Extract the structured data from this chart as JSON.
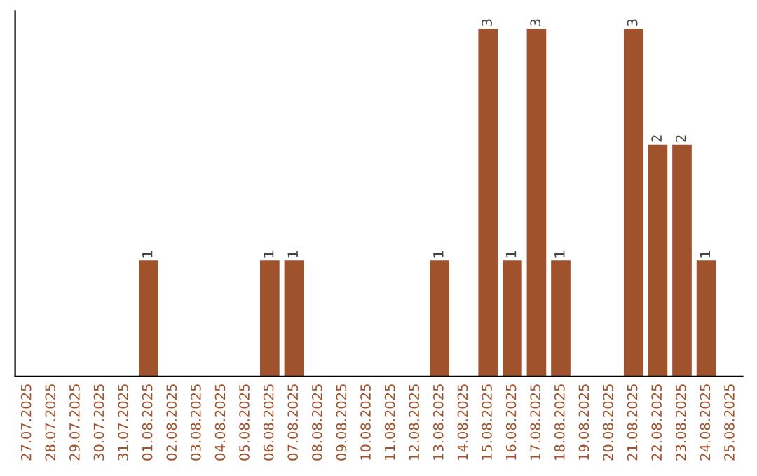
{
  "chart_data": {
    "type": "bar",
    "categories": [
      "27.07.2025",
      "28.07.2025",
      "29.07.2025",
      "30.07.2025",
      "31.07.2025",
      "01.08.2025",
      "02.08.2025",
      "03.08.2025",
      "04.08.2025",
      "05.08.2025",
      "06.08.2025",
      "07.08.2025",
      "08.08.2025",
      "09.08.2025",
      "10.08.2025",
      "11.08.2025",
      "12.08.2025",
      "13.08.2025",
      "14.08.2025",
      "15.08.2025",
      "16.08.2025",
      "17.08.2025",
      "18.08.2025",
      "19.08.2025",
      "20.08.2025",
      "21.08.2025",
      "22.08.2025",
      "23.08.2025",
      "24.08.2025",
      "25.08.2025"
    ],
    "values": [
      0,
      0,
      0,
      0,
      0,
      1,
      0,
      0,
      0,
      0,
      1,
      1,
      0,
      0,
      0,
      0,
      0,
      1,
      0,
      3,
      1,
      3,
      1,
      0,
      0,
      3,
      2,
      2,
      1,
      0
    ],
    "value_labels": [
      null,
      null,
      null,
      null,
      null,
      "1",
      null,
      null,
      null,
      null,
      "1",
      "1",
      null,
      null,
      null,
      null,
      null,
      "1",
      null,
      "3",
      "1",
      "3",
      "1",
      null,
      null,
      "3",
      "2",
      "2",
      "1",
      null
    ],
    "color": "#a0522d",
    "tick_labels": "x",
    "grid": false
  }
}
